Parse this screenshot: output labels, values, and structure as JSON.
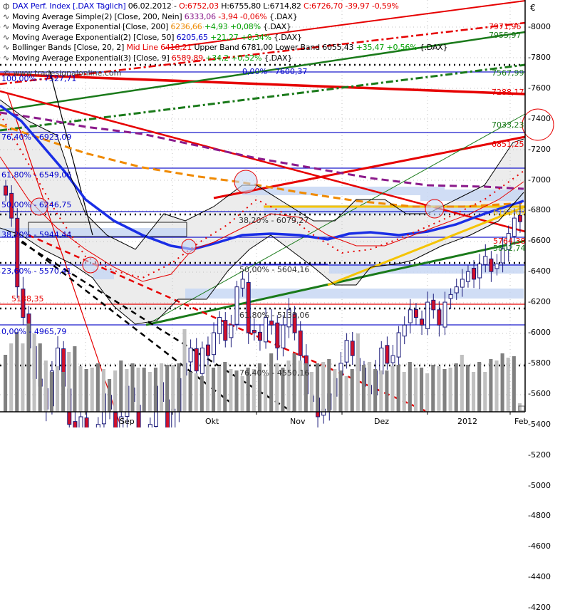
{
  "header": {
    "symbol_line": {
      "name": "DAX Perf. Index [.DAX  Täglich]",
      "date": "06.02.2012",
      "open": "O:6752,03",
      "high": "H:6755,80",
      "low": "L:6714,82",
      "close": "C:6726,70 -39,97 -0,59%"
    },
    "indicators": [
      {
        "name": "Moving Average Simple(2) [Close, 200, Nein]",
        "value": "6333,06",
        "change": "-3,94 -0,06%",
        "suffix": "{.DAX}"
      },
      {
        "name": "Moving Average Exponential [Close, 200]",
        "value": "6236,66",
        "change": "+4,93 +0,08%",
        "suffix": "{.DAX}"
      },
      {
        "name": "Moving Average Exponential(2) [Close, 50]",
        "value": "6205,65",
        "change": "+21,27 +0,34%",
        "suffix": "{.DAX}"
      },
      {
        "name": "Bollinger Bands [Close, 20, 2]",
        "mid": "Mid Line 6418,21",
        "bands": "Upper Band 6781,00 Lower Band 6055,43",
        "change": "+35,47 +0,56%",
        "suffix": "{.DAX}"
      },
      {
        "name": "Moving Average Exponential(3) [Close, 9]",
        "value": "6589,89",
        "change": "+34,2 +0,52%",
        "suffix": "{.DAX}"
      }
    ],
    "copyright": "© www.tradesignalonline.com"
  },
  "currency_symbol": "€",
  "fib_labels": [
    {
      "text": "100,00% - 7527,71",
      "price": 7527.71
    },
    {
      "text": "0,00% - 7600,37",
      "price": 7600.37
    },
    {
      "text": "76,40% - 6923,09",
      "price": 6923.09
    },
    {
      "text": "61,80% - 6549,06",
      "price": 6549.06
    },
    {
      "text": "50,00% - 6246,75",
      "price": 6246.75
    },
    {
      "text": "38,20% - 5944,44",
      "price": 5944.44
    },
    {
      "text": "23,60% - 5570,41",
      "price": 5570.41
    },
    {
      "text": "0,00% - 4965,79",
      "price": 4965.79
    },
    {
      "text": "38,20% - 6079,27",
      "price": 6079.27
    },
    {
      "text": "50,00% - 5604,16",
      "price": 5604.16
    },
    {
      "text": "61,80% - 5133,06",
      "price": 5133.06
    },
    {
      "text": "76,40% - 4550,16",
      "price": 4550.16
    }
  ],
  "level_labels": [
    {
      "text": "5188,35",
      "color": "#e60000"
    },
    {
      "text": "7971,96",
      "color": "#e60000"
    },
    {
      "text": "7955,97",
      "color": "#1a7a1a"
    },
    {
      "text": "7567,99",
      "color": "#1a7a1a"
    },
    {
      "text": "7288,17",
      "color": "#e60000"
    },
    {
      "text": "7033,23",
      "color": "#1a7a1a"
    },
    {
      "text": "6851,25",
      "color": "#e60000"
    },
    {
      "text": "6163,69",
      "color": "#f5c400"
    },
    {
      "text": "5764,38",
      "color": "#e60000"
    },
    {
      "text": "5802,74",
      "color": "#1a7a1a"
    }
  ],
  "chart_data": {
    "type": "candlestick",
    "title": "DAX Perf. Index [.DAX Täglich] 06.02.2012",
    "xlabel": "",
    "ylabel": "€",
    "ylim": [
      4100,
      8100
    ],
    "y_ticks": [
      8000,
      7800,
      7600,
      7400,
      7200,
      7000,
      6800,
      6600,
      6400,
      6200,
      6000,
      5800,
      5600,
      5400,
      5200,
      5000,
      4800,
      4600,
      4400,
      4200
    ],
    "x_ticks": [
      "Sep",
      "Okt",
      "Nov",
      "Dez",
      "2012",
      "Feb"
    ],
    "last_bar": {
      "date": "06.02.2012",
      "open": 6752.03,
      "high": 6755.8,
      "low": 6714.82,
      "close": 6726.7,
      "change": -39.97,
      "change_pct": -0.59
    },
    "close_series_approx": [
      6900,
      6750,
      6300,
      6100,
      5900,
      5700,
      5650,
      5500,
      5750,
      5900,
      5650,
      5400,
      5300,
      5450,
      5200,
      5050,
      5400,
      5600,
      5500,
      5300,
      5450,
      5650,
      5550,
      5250,
      5150,
      5400,
      5650,
      5550,
      5300,
      5500,
      5700,
      5800,
      5900,
      5750,
      5900,
      5850,
      6000,
      6100,
      5950,
      6050,
      6300,
      6350,
      6000,
      6000,
      5950,
      6100,
      6050,
      5900,
      6050,
      6150,
      6000,
      5850,
      5600,
      5550,
      5450,
      5500,
      5600,
      5700,
      5800,
      5950,
      5850,
      5750,
      5650,
      5600,
      5750,
      5900,
      5800,
      5850,
      6000,
      6050,
      6150,
      6100,
      6050,
      6200,
      6150,
      6050,
      6200,
      6250,
      6300,
      6350,
      6400,
      6350,
      6450,
      6500,
      6400,
      6450,
      6550,
      6650,
      6750,
      6726.7
    ],
    "volume_series_approx": [
      40,
      48,
      56,
      48,
      62,
      55,
      48,
      36,
      28,
      32,
      28,
      42,
      46,
      32,
      30,
      31,
      34,
      30,
      23,
      29,
      36,
      30,
      34,
      31,
      31,
      28,
      31,
      34,
      33,
      33,
      34,
      58,
      28,
      27,
      25,
      33,
      31,
      32,
      35,
      30,
      29,
      25,
      31,
      30,
      34,
      26,
      41,
      34,
      31,
      36,
      41,
      36,
      34,
      28,
      34,
      35,
      37,
      30,
      29,
      25,
      30,
      55,
      33,
      35,
      30,
      29,
      29,
      32,
      33,
      28,
      35,
      31,
      31,
      27,
      33,
      32,
      30,
      31,
      34,
      40,
      33,
      28,
      35,
      28,
      37,
      36,
      41,
      38,
      39,
      6
    ],
    "series": [
      {
        "name": "Moving Average Simple(2) [Close, 200]",
        "last": 6333.06,
        "color": "#8b1a8b",
        "style": "dashed"
      },
      {
        "name": "Moving Average Exponential [Close, 200]",
        "last": 6236.66,
        "color": "#f08a00",
        "style": "dashed"
      },
      {
        "name": "Moving Average Exponential(2) [Close, 50]",
        "last": 6205.65,
        "color": "#1a2ee6",
        "style": "solid-thick"
      },
      {
        "name": "Bollinger Bands Mid Line [Close, 20, 2]",
        "last": 6418.21,
        "color": "#e60000"
      },
      {
        "name": "Bollinger Upper Band",
        "last": 6781.0,
        "color": "#000000"
      },
      {
        "name": "Bollinger Lower Band",
        "last": 6055.43,
        "color": "#000000"
      },
      {
        "name": "Moving Average Exponential(3) [Close, 9]",
        "last": 6589.89,
        "color": "#e60000",
        "style": "dotted"
      }
    ],
    "horizontal_levels": [
      7600,
      5188.35,
      6079.27,
      5604.16,
      5133.06,
      4550.16
    ],
    "legend_position": "top-left",
    "grid": true
  }
}
